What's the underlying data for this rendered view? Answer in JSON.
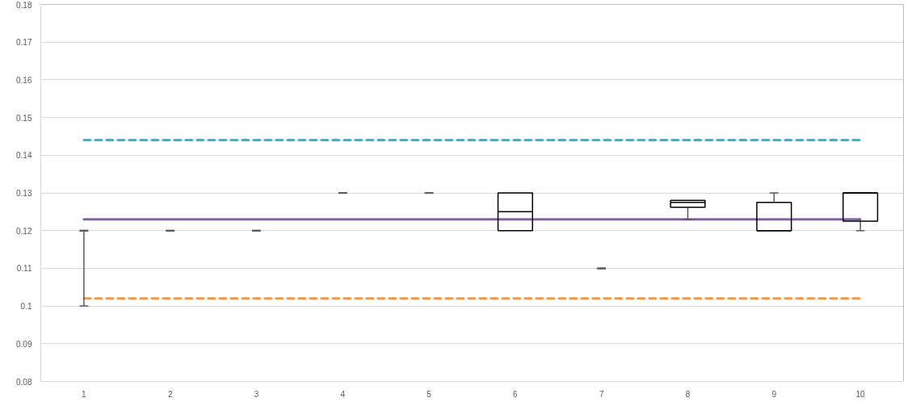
{
  "chart_data": {
    "type": "box",
    "categories": [
      "1",
      "2",
      "3",
      "4",
      "5",
      "6",
      "7",
      "8",
      "9",
      "10"
    ],
    "boxes": [
      {
        "low": 0.1,
        "q1": 0.12,
        "median": 0.12,
        "q3": 0.12,
        "high": 0.12
      },
      {
        "low": 0.12,
        "q1": 0.12,
        "median": 0.12,
        "q3": 0.12,
        "high": 0.12
      },
      {
        "low": 0.12,
        "q1": 0.12,
        "median": 0.12,
        "q3": 0.12,
        "high": 0.12
      },
      {
        "low": 0.13,
        "q1": 0.13,
        "median": 0.13,
        "q3": 0.13,
        "high": 0.13
      },
      {
        "low": 0.13,
        "q1": 0.13,
        "median": 0.13,
        "q3": 0.13,
        "high": 0.13
      },
      {
        "low": 0.12,
        "q1": 0.12,
        "median": 0.125,
        "q3": 0.13,
        "high": 0.13
      },
      {
        "low": 0.11,
        "q1": 0.11,
        "median": 0.11,
        "q3": 0.11,
        "high": 0.11
      },
      {
        "low": 0.123,
        "q1": 0.1262,
        "median": 0.1275,
        "q3": 0.128,
        "high": 0.128
      },
      {
        "low": 0.12,
        "q1": 0.12,
        "median": 0.12,
        "q3": 0.1275,
        "high": 0.13
      },
      {
        "low": 0.12,
        "q1": 0.1225,
        "median": 0.13,
        "q3": 0.13,
        "high": 0.13
      }
    ],
    "ylim": [
      0.08,
      0.18
    ],
    "yticks": [
      0.08,
      0.09,
      0.1,
      0.11,
      0.12,
      0.13,
      0.14,
      0.15,
      0.16,
      0.17,
      0.18
    ],
    "grid": "y",
    "ref_lines": [
      {
        "axis": "y",
        "value": 0.144,
        "color": "#4bacc6",
        "line_style": "dashed"
      },
      {
        "axis": "y",
        "value": 0.102,
        "color": "#f79646",
        "line_style": "dashed"
      },
      {
        "axis": "y",
        "value": 0.123,
        "color": "#8064a2",
        "line_style": "solid"
      }
    ]
  }
}
